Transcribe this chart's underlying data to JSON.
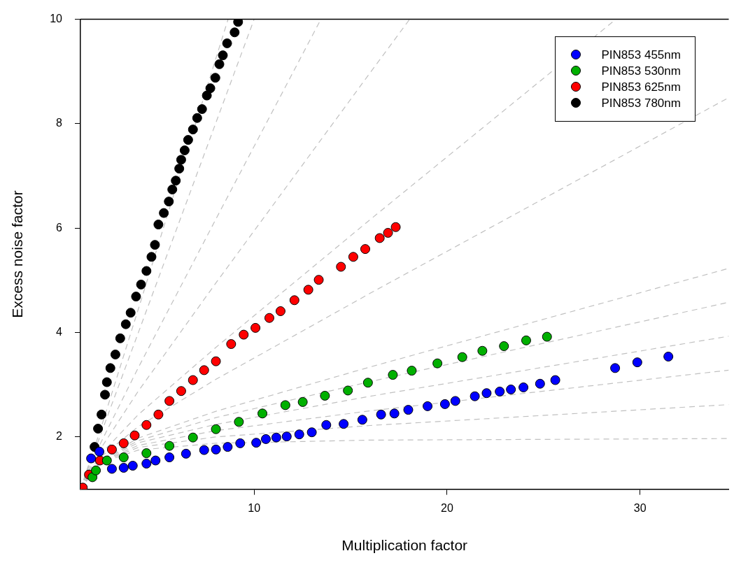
{
  "chart_data": {
    "type": "scatter",
    "xlabel": "Multiplication factor",
    "ylabel": "Excess noise factor",
    "xlim": [
      1,
      34.6
    ],
    "xticks": [
      10,
      20,
      30
    ],
    "ylim": [
      1,
      10
    ],
    "yticks": [
      2,
      4,
      6,
      8,
      10
    ],
    "grid": false,
    "legend": "top right",
    "marker": "circle",
    "series": [
      {
        "name": "PIN853 455nm",
        "color": "#0000ff",
        "x": [
          1.55,
          1.98,
          2.63,
          3.24,
          3.71,
          4.42,
          4.89,
          5.61,
          6.47,
          7.41,
          8.02,
          8.63,
          9.28,
          10.11,
          10.61,
          11.15,
          11.69,
          12.34,
          12.99,
          13.74,
          14.64,
          15.61,
          16.58,
          17.27,
          17.99,
          18.99,
          19.89,
          20.43,
          21.44,
          22.05,
          22.73,
          23.31,
          23.96,
          24.82,
          25.61,
          28.71,
          29.86,
          31.47
        ],
        "values": [
          1.59,
          1.72,
          1.39,
          1.41,
          1.45,
          1.49,
          1.55,
          1.61,
          1.68,
          1.75,
          1.76,
          1.81,
          1.88,
          1.89,
          1.96,
          1.99,
          2.01,
          2.05,
          2.09,
          2.23,
          2.25,
          2.33,
          2.43,
          2.45,
          2.52,
          2.59,
          2.63,
          2.69,
          2.78,
          2.84,
          2.87,
          2.91,
          2.95,
          3.02,
          3.09,
          3.32,
          3.43,
          3.54
        ]
      },
      {
        "name": "PIN853 530nm",
        "color": "#00b000",
        "x": [
          1.62,
          1.8,
          2.37,
          3.24,
          4.42,
          5.61,
          6.83,
          8.02,
          9.21,
          10.43,
          11.62,
          12.52,
          13.67,
          14.86,
          15.9,
          17.19,
          18.17,
          19.5,
          20.79,
          21.83,
          22.95,
          24.1,
          25.18
        ],
        "values": [
          1.23,
          1.36,
          1.55,
          1.61,
          1.69,
          1.83,
          1.99,
          2.15,
          2.29,
          2.45,
          2.61,
          2.67,
          2.79,
          2.89,
          3.04,
          3.19,
          3.27,
          3.41,
          3.53,
          3.65,
          3.74,
          3.85,
          3.92
        ]
      },
      {
        "name": "PIN853 625nm",
        "color": "#ff0000",
        "x": [
          1.12,
          1.44,
          2.01,
          2.63,
          3.24,
          3.81,
          4.42,
          5.04,
          5.61,
          6.22,
          6.83,
          7.41,
          8.02,
          8.81,
          9.46,
          10.07,
          10.79,
          11.37,
          12.09,
          12.81,
          13.35,
          14.5,
          15.14,
          15.76,
          16.51,
          16.94,
          17.34
        ],
        "values": [
          1.03,
          1.28,
          1.55,
          1.76,
          1.88,
          2.03,
          2.23,
          2.43,
          2.69,
          2.88,
          3.09,
          3.28,
          3.45,
          3.78,
          3.96,
          4.09,
          4.28,
          4.41,
          4.62,
          4.82,
          5.01,
          5.26,
          5.45,
          5.6,
          5.81,
          5.91,
          6.02
        ]
      },
      {
        "name": "PIN853 780nm",
        "color": "#000000",
        "x": [
          1.73,
          1.91,
          2.09,
          2.27,
          2.37,
          2.55,
          2.81,
          3.06,
          3.35,
          3.6,
          3.88,
          4.14,
          4.42,
          4.68,
          4.86,
          5.04,
          5.32,
          5.58,
          5.76,
          5.94,
          6.12,
          6.22,
          6.4,
          6.58,
          6.83,
          7.05,
          7.3,
          7.55,
          7.73,
          7.99,
          8.2,
          8.38,
          8.6,
          8.99,
          9.17
        ],
        "values": [
          1.81,
          2.16,
          2.43,
          2.81,
          3.05,
          3.32,
          3.58,
          3.89,
          4.16,
          4.38,
          4.69,
          4.92,
          5.18,
          5.45,
          5.68,
          6.07,
          6.29,
          6.51,
          6.74,
          6.91,
          7.14,
          7.31,
          7.49,
          7.69,
          7.89,
          8.11,
          8.28,
          8.54,
          8.68,
          8.88,
          9.14,
          9.31,
          9.54,
          9.75,
          9.95
        ]
      },
      {
        "type": "line",
        "color": "#c0c0c0",
        "line_style": "dashed",
        "marker": "none",
        "x": [
          1,
          2,
          4,
          8,
          16,
          34.6
        ],
        "values": [
          1,
          1.5,
          1.75,
          1.88,
          1.94,
          1.97
        ]
      },
      {
        "type": "line",
        "color": "#c0c0c0",
        "line_style": "dashed",
        "marker": "none",
        "x": [
          1,
          2,
          4,
          8,
          16,
          34.6
        ],
        "values": [
          1,
          1.51,
          1.8,
          2.0,
          2.22,
          2.62
        ]
      },
      {
        "type": "line",
        "color": "#c0c0c0",
        "line_style": "dashed",
        "marker": "none",
        "x": [
          1,
          2,
          4,
          8,
          16,
          34.6
        ],
        "values": [
          1,
          1.52,
          1.84,
          2.12,
          2.5,
          3.28
        ]
      },
      {
        "type": "line",
        "color": "#c0c0c0",
        "line_style": "dashed",
        "marker": "none",
        "x": [
          1,
          2,
          4,
          8,
          16,
          34.6
        ],
        "values": [
          1,
          1.53,
          1.89,
          2.24,
          2.78,
          3.93
        ]
      },
      {
        "type": "line",
        "color": "#c0c0c0",
        "line_style": "dashed",
        "marker": "none",
        "x": [
          1,
          2,
          4,
          8,
          16,
          34.6
        ],
        "values": [
          1,
          1.54,
          1.93,
          2.37,
          3.06,
          4.58
        ]
      },
      {
        "type": "line",
        "color": "#c0c0c0",
        "line_style": "dashed",
        "marker": "none",
        "x": [
          1,
          2,
          4,
          8,
          16,
          34.6
        ],
        "values": [
          1,
          1.55,
          1.98,
          2.49,
          3.34,
          5.23
        ]
      },
      {
        "type": "line",
        "color": "#c0c0c0",
        "line_style": "dashed",
        "marker": "none",
        "x": [
          1,
          2,
          4,
          8,
          16,
          34.6
        ],
        "values": [
          1,
          1.6,
          2.2,
          3.1,
          4.75,
          8.5
        ]
      },
      {
        "type": "line",
        "color": "#c0c0c0",
        "line_style": "dashed",
        "marker": "none",
        "x": [
          1,
          2,
          4,
          8,
          16,
          28.75
        ],
        "values": [
          1,
          1.65,
          2.43,
          3.71,
          6.16,
          10
        ]
      },
      {
        "type": "line",
        "color": "#c0c0c0",
        "line_style": "dashed",
        "marker": "none",
        "x": [
          1,
          2,
          4,
          8,
          16,
          18.06
        ],
        "values": [
          1,
          1.75,
          2.88,
          4.94,
          8.97,
          10
        ]
      },
      {
        "type": "line",
        "color": "#c0c0c0",
        "line_style": "dashed",
        "marker": "none",
        "x": [
          1,
          2,
          4,
          8,
          13.46
        ],
        "values": [
          1,
          1.85,
          3.33,
          6.16,
          10
        ]
      },
      {
        "type": "line",
        "color": "#c0c0c0",
        "line_style": "dashed",
        "marker": "none",
        "x": [
          1,
          2,
          4,
          8,
          10
        ],
        "values": [
          1,
          2,
          4,
          8,
          10
        ]
      },
      {
        "type": "line",
        "color": "#c0c0c0",
        "line_style": "dashed",
        "marker": "none",
        "x": [
          1,
          2,
          4,
          8,
          8.65
        ],
        "values": [
          1,
          2.1,
          4.45,
          9.23,
          10
        ]
      }
    ]
  }
}
